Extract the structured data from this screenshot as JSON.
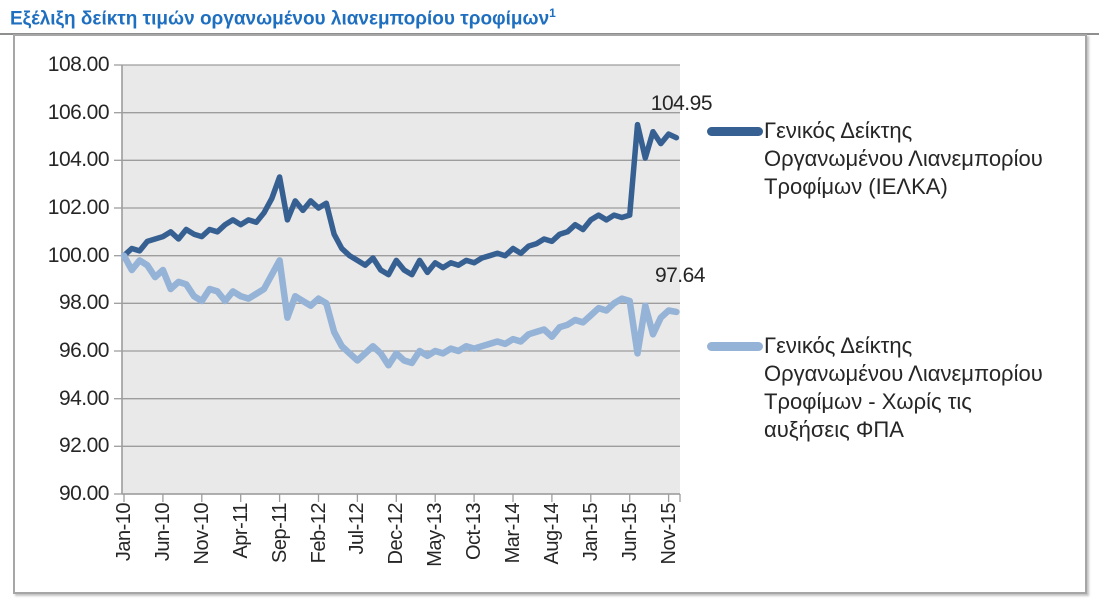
{
  "header": {
    "title": "Εξέλιξη δείκτη τιμών οργανωμένου λιανεμπορίου τροφίμων",
    "superscript": "1",
    "title_color": "#1f6fc0"
  },
  "chart_data": {
    "type": "line",
    "title": "Εξέλιξη δείκτη τιμών οργανωμένου λιανεμπορίου τροφίμων",
    "xlabel": "",
    "ylabel": "",
    "ylim": [
      90,
      108
    ],
    "ystep": 2,
    "grid": true,
    "legend_position": "right",
    "plot_bg": "#e9e9e9",
    "grid_color": "#9d9d9d",
    "axis_text_color": "#262626",
    "y_tick_labels": [
      "108.00",
      "106.00",
      "104.00",
      "102.00",
      "100.00",
      "98.00",
      "96.00",
      "94.00",
      "92.00",
      "90.00"
    ],
    "x_tick_labels": [
      "Jan-10",
      "Jun-10",
      "Nov-10",
      "Apr-11",
      "Sep-11",
      "Feb-12",
      "Jul-12",
      "Dec-12",
      "May-13",
      "Oct-13",
      "Mar-14",
      "Aug-14",
      "Jan-15",
      "Jun-15",
      "Nov-15"
    ],
    "x": [
      "Jan-10",
      "Feb-10",
      "Mar-10",
      "Apr-10",
      "May-10",
      "Jun-10",
      "Jul-10",
      "Aug-10",
      "Sep-10",
      "Oct-10",
      "Nov-10",
      "Dec-10",
      "Jan-11",
      "Feb-11",
      "Mar-11",
      "Apr-11",
      "May-11",
      "Jun-11",
      "Jul-11",
      "Aug-11",
      "Sep-11",
      "Oct-11",
      "Nov-11",
      "Dec-11",
      "Jan-12",
      "Feb-12",
      "Mar-12",
      "Apr-12",
      "May-12",
      "Jun-12",
      "Jul-12",
      "Aug-12",
      "Sep-12",
      "Oct-12",
      "Nov-12",
      "Dec-12",
      "Jan-13",
      "Feb-13",
      "Mar-13",
      "Apr-13",
      "May-13",
      "Jun-13",
      "Jul-13",
      "Aug-13",
      "Sep-13",
      "Oct-13",
      "Nov-13",
      "Dec-13",
      "Jan-14",
      "Feb-14",
      "Mar-14",
      "Apr-14",
      "May-14",
      "Jun-14",
      "Jul-14",
      "Aug-14",
      "Sep-14",
      "Oct-14",
      "Nov-14",
      "Dec-14",
      "Jan-15",
      "Feb-15",
      "Mar-15",
      "Apr-15",
      "May-15",
      "Jun-15",
      "Jul-15",
      "Aug-15",
      "Sep-15",
      "Oct-15",
      "Nov-15",
      "Dec-15"
    ],
    "series": [
      {
        "name": "Γενικός Δείκτης Οργανωμένου Λιανεμπορίου Τροφίμων (ΙΕΛΚΑ)",
        "legend_lines": [
          "Γενικός Δείκτης",
          "Οργανωμένου Λιανεμπορίου",
          "Τροφίμων (ΙΕΛΚΑ)"
        ],
        "color": "#376092",
        "stroke_width": 5.5,
        "end_label": "104.95",
        "values": [
          100.0,
          100.3,
          100.2,
          100.6,
          100.7,
          100.8,
          101.0,
          100.7,
          101.1,
          100.9,
          100.8,
          101.1,
          101.0,
          101.3,
          101.5,
          101.3,
          101.5,
          101.4,
          101.8,
          102.4,
          103.3,
          101.5,
          102.3,
          101.9,
          102.3,
          102.0,
          102.2,
          100.9,
          100.3,
          100.0,
          99.8,
          99.6,
          99.9,
          99.4,
          99.2,
          99.8,
          99.4,
          99.2,
          99.8,
          99.3,
          99.7,
          99.5,
          99.7,
          99.6,
          99.8,
          99.7,
          99.9,
          100.0,
          100.1,
          100.0,
          100.3,
          100.1,
          100.4,
          100.5,
          100.7,
          100.6,
          100.9,
          101.0,
          101.3,
          101.1,
          101.5,
          101.7,
          101.5,
          101.7,
          101.6,
          101.7,
          105.5,
          104.1,
          105.2,
          104.7,
          105.1,
          104.95
        ]
      },
      {
        "name": "Γενικός Δείκτης Οργανωμένου Λιανεμπορίου Τροφίμων - Χωρίς τις αυξήσεις ΦΠΑ",
        "legend_lines": [
          "Γενικός Δείκτης",
          "Οργανωμένου Λιανεμπορίου",
          "Τροφίμων - Χωρίς τις",
          "αυξήσεις ΦΠΑ"
        ],
        "color": "#95b3d7",
        "stroke_width": 6.5,
        "end_label": "97.64",
        "values": [
          100.0,
          99.4,
          99.8,
          99.6,
          99.1,
          99.4,
          98.6,
          98.9,
          98.8,
          98.3,
          98.1,
          98.6,
          98.5,
          98.1,
          98.5,
          98.3,
          98.2,
          98.4,
          98.6,
          99.2,
          99.8,
          97.4,
          98.3,
          98.1,
          97.9,
          98.2,
          98.0,
          96.8,
          96.2,
          95.9,
          95.6,
          95.9,
          96.2,
          95.9,
          95.4,
          95.9,
          95.6,
          95.5,
          96.0,
          95.8,
          96.0,
          95.9,
          96.1,
          96.0,
          96.2,
          96.1,
          96.2,
          96.3,
          96.4,
          96.3,
          96.5,
          96.4,
          96.7,
          96.8,
          96.9,
          96.6,
          97.0,
          97.1,
          97.3,
          97.2,
          97.5,
          97.8,
          97.7,
          98.0,
          98.2,
          98.1,
          95.9,
          97.9,
          96.7,
          97.4,
          97.7,
          97.64
        ]
      }
    ]
  }
}
